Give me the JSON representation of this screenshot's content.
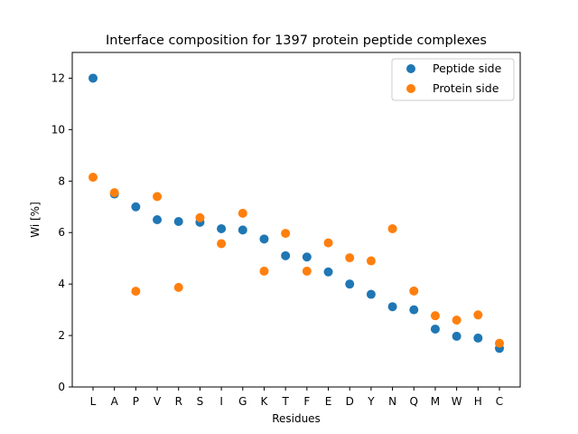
{
  "chart_data": {
    "type": "scatter",
    "title": "Interface composition for 1397 protein peptide complexes",
    "xlabel": "Residues",
    "ylabel": "Wi [%]",
    "categories": [
      "L",
      "A",
      "P",
      "V",
      "R",
      "S",
      "I",
      "G",
      "K",
      "T",
      "F",
      "E",
      "D",
      "Y",
      "N",
      "Q",
      "M",
      "W",
      "H",
      "C"
    ],
    "ylim": [
      0,
      13
    ],
    "yticks": [
      0,
      2,
      4,
      6,
      8,
      10,
      12
    ],
    "grid": false,
    "legend_position": "top-right",
    "series": [
      {
        "name": "Peptide side",
        "color": "#1f77b4",
        "values": [
          12.0,
          7.5,
          7.0,
          6.5,
          6.43,
          6.4,
          6.15,
          6.1,
          5.75,
          5.1,
          5.05,
          4.47,
          4.0,
          3.6,
          3.12,
          3.0,
          2.25,
          1.97,
          1.9,
          1.5
        ]
      },
      {
        "name": "Protein side",
        "color": "#ff7f0e",
        "values": [
          8.15,
          7.55,
          3.72,
          7.4,
          3.87,
          6.58,
          5.57,
          6.75,
          4.5,
          5.97,
          4.5,
          5.6,
          5.02,
          4.9,
          6.15,
          3.73,
          2.77,
          2.6,
          2.8,
          1.7
        ]
      }
    ]
  }
}
